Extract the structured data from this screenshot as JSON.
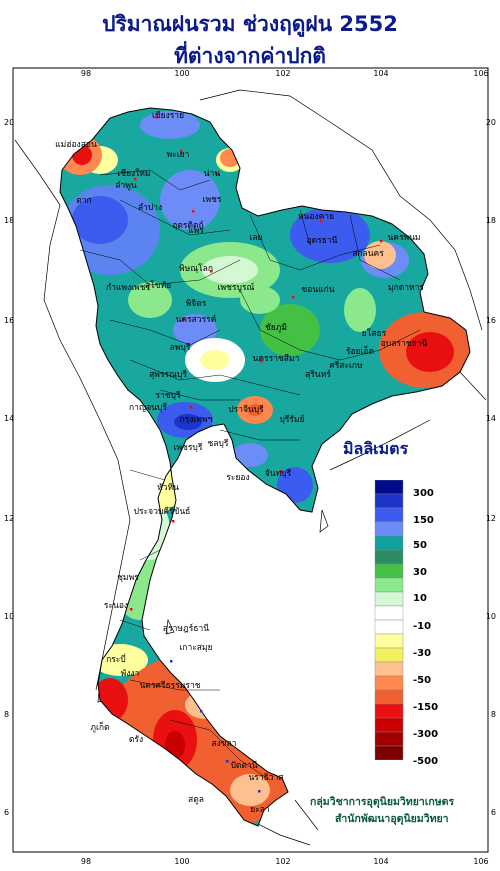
{
  "title_line1": "ปริมาณฝนรวม ช่วงฤดูฝน 2552",
  "title_line2": "ที่ต่างจากค่าปกติ",
  "axis": {
    "lon_ticks": [
      "98",
      "100",
      "102",
      "104",
      "106"
    ],
    "lat_ticks": [
      "20",
      "18",
      "16",
      "14",
      "12",
      "10",
      "8",
      "6"
    ]
  },
  "legend": {
    "title": "มิลลิเมตร",
    "colors": [
      "#000c8c",
      "#1e34c8",
      "#3c5cf0",
      "#6c8cf8",
      "#10a0a0",
      "#2c8c64",
      "#44c044",
      "#8ce88c",
      "#d4f8d4",
      "#ffffff",
      "#ffffff",
      "#ffffa0",
      "#f0f060",
      "#ffc090",
      "#ff8850",
      "#f06030",
      "#e81010",
      "#c80000",
      "#a00000",
      "#7c0000"
    ],
    "labels": [
      "300",
      "150",
      "50",
      "30",
      "10",
      "-10",
      "-30",
      "-50",
      "-150",
      "-300",
      "-500"
    ]
  },
  "provinces": [
    "เชียงราย",
    "เชียงใหม่",
    "ลำพูน",
    "พะเยา",
    "น่าน",
    "เพชร",
    "ลำปาง",
    "แพร่",
    "แม่ฮ่องสอน",
    "ตาก",
    "อุตรดิตถ์",
    "พิษณุโลก",
    "สุโขทัย",
    "หนองคาย",
    "อุดรธานี",
    "นครพนม",
    "สกลนคร",
    "มุกดาหาร",
    "เลย",
    "ขอนแก่น",
    "กำแพงเพชร",
    "เพชรบูรณ์",
    "พิจิตร",
    "นครสวรรค์",
    "ชัยภูมิ",
    "อุบลราชธานี",
    "ยโสธร",
    "ร้อยเอ็ด",
    "ลพบุรี",
    "นครราชสีมา",
    "สุรินทร์",
    "สุพรรณบุรี",
    "กาญจนบุรี",
    "กรุงเทพฯ",
    "ปราจีนบุรี",
    "บุรีรัมย์",
    "ศรีสะเกษ",
    "ราชบุรี",
    "ชลบุรี",
    "ระยอง",
    "จันทบุรี",
    "เพชรบุรี",
    "หัวหิน",
    "ประจวบคีรีขันธ์",
    "ชุมพร",
    "ระนอง",
    "สุราษฎร์ธานี",
    "เกาะสมุย",
    "นครศรีธรรมราช",
    "กระบี่",
    "พังงา",
    "ภูเก็ต",
    "ตรัง",
    "สงขลา",
    "ปัตตานี",
    "นราธิวาส",
    "สตูล",
    "ยะลา"
  ],
  "credit_line1": "กลุ่มวิชาการอุตุนิยมวิทยาเกษตร",
  "credit_line2": "สำนักพัฒนาอุตุนิยมวิทยา"
}
